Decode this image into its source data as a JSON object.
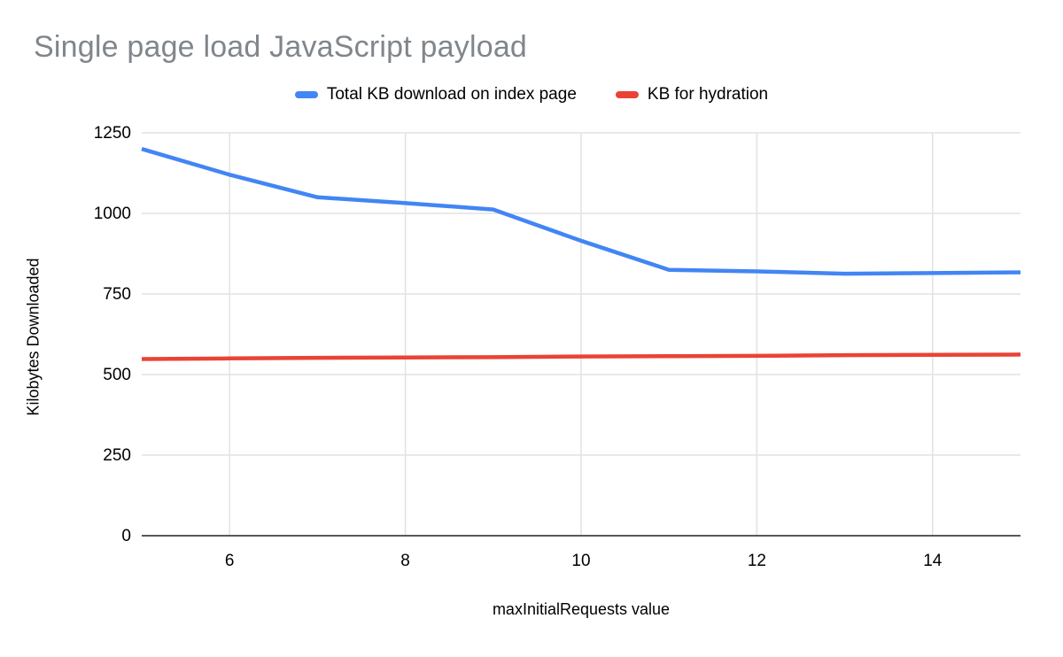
{
  "title": "Single page load JavaScript payload",
  "colors": {
    "title_text": "#80868b",
    "grid": "#e2e2e2",
    "axis": "#212121",
    "tick_text": "#000000",
    "series_blue": "#4285f4",
    "series_red": "#ea4335"
  },
  "chart_data": {
    "type": "line",
    "title": "Single page load JavaScript payload",
    "xlabel": "maxInitialRequests value",
    "ylabel": "Kilobytes Downloaded",
    "xlim": [
      5,
      15
    ],
    "ylim": [
      0,
      1250
    ],
    "xticks": [
      6,
      8,
      10,
      12,
      14
    ],
    "yticks": [
      0,
      250,
      500,
      750,
      1000,
      1250
    ],
    "grid": true,
    "legend_position": "top",
    "x": [
      5,
      6,
      7,
      8,
      9,
      10,
      11,
      12,
      13,
      14,
      15
    ],
    "series": [
      {
        "name": "Total KB download on index page",
        "color": "#4285f4",
        "values": [
          1200,
          1120,
          1050,
          1032,
          1012,
          915,
          825,
          820,
          813,
          815,
          817
        ]
      },
      {
        "name": "KB for hydration",
        "color": "#ea4335",
        "values": [
          548,
          550,
          552,
          553,
          554,
          556,
          557,
          558,
          560,
          561,
          562
        ]
      }
    ]
  }
}
